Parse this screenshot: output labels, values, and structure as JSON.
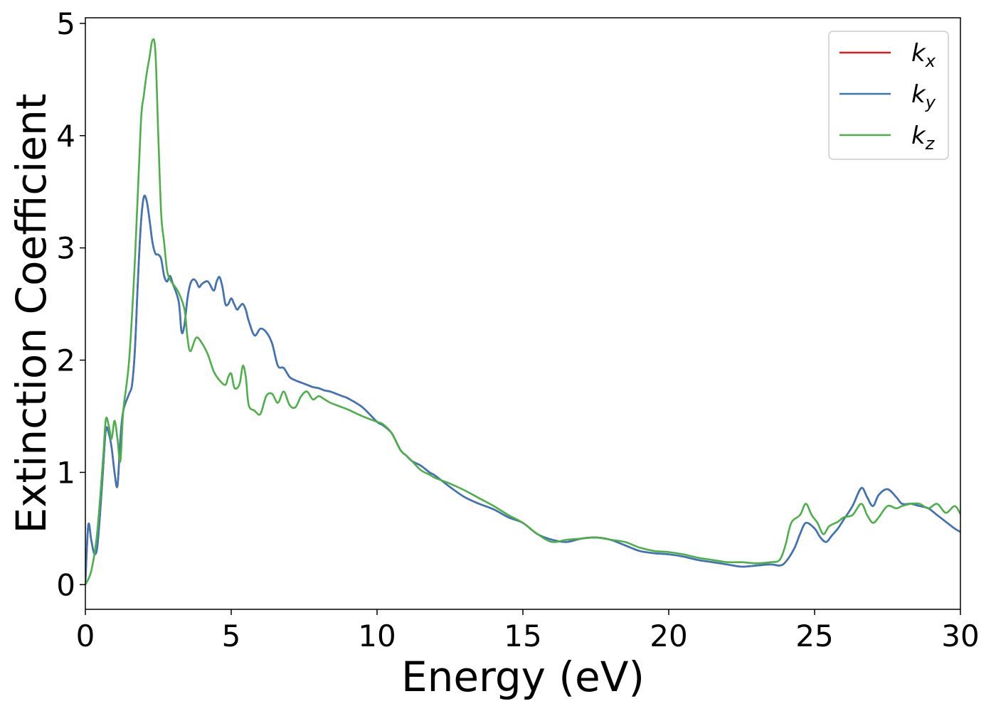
{
  "chart_data": {
    "type": "line",
    "title": "",
    "xlabel": "Energy (eV)",
    "ylabel": "Extinction Coefficient",
    "xlim": [
      0,
      30
    ],
    "ylim": [
      -0.22,
      5.05
    ],
    "xticks": [
      0,
      5,
      10,
      15,
      20,
      25,
      30
    ],
    "yticks": [
      0,
      1,
      2,
      3,
      4,
      5
    ],
    "grid": false,
    "legend_position": "top-right",
    "series": [
      {
        "name": "k",
        "subscript": "x",
        "color": "#e41a1c",
        "x": [
          0,
          0.1,
          0.2,
          0.3,
          0.4,
          0.5,
          0.6,
          0.7,
          0.8,
          0.9,
          1.0,
          1.1,
          1.2,
          1.3,
          1.5,
          1.6,
          1.7,
          1.8,
          1.9,
          2.0,
          2.1,
          2.2,
          2.3,
          2.4,
          2.5,
          2.6,
          2.7,
          2.8,
          2.9,
          3.0,
          3.2,
          3.3,
          3.4,
          3.5,
          3.6,
          3.7,
          3.8,
          3.9,
          4.0,
          4.2,
          4.4,
          4.5,
          4.6,
          4.7,
          4.8,
          4.9,
          5.0,
          5.1,
          5.2,
          5.3,
          5.4,
          5.5,
          5.6,
          5.8,
          6.0,
          6.2,
          6.4,
          6.6,
          6.8,
          7.0,
          7.2,
          7.4,
          7.6,
          7.8,
          8.0,
          8.2,
          8.4,
          8.6,
          8.8,
          9.0,
          9.5,
          10.0,
          10.2,
          10.5,
          10.8,
          11.0,
          11.2,
          11.5,
          11.8,
          12.0,
          12.5,
          13.0,
          13.5,
          14.0,
          14.5,
          15.0,
          15.5,
          16.0,
          16.5,
          17.0,
          17.5,
          18.0,
          18.5,
          19.0,
          19.5,
          20.0,
          20.5,
          21.0,
          21.5,
          22.0,
          22.5,
          23.0,
          23.5,
          23.8,
          24.0,
          24.3,
          24.5,
          24.7,
          25.0,
          25.2,
          25.4,
          25.6,
          25.8,
          26.0,
          26.3,
          26.6,
          26.8,
          27.0,
          27.2,
          27.5,
          27.8,
          28.0,
          28.3,
          28.6,
          28.9,
          29.2,
          29.5,
          29.8,
          30.0
        ],
        "y": [
          0.02,
          0.53,
          0.4,
          0.28,
          0.32,
          0.62,
          1.0,
          1.38,
          1.35,
          1.22,
          1.0,
          0.88,
          1.3,
          1.55,
          1.7,
          1.78,
          2.1,
          2.7,
          3.2,
          3.45,
          3.42,
          3.25,
          3.05,
          2.95,
          2.94,
          2.9,
          2.75,
          2.7,
          2.75,
          2.68,
          2.52,
          2.25,
          2.32,
          2.55,
          2.68,
          2.72,
          2.7,
          2.65,
          2.68,
          2.7,
          2.62,
          2.7,
          2.74,
          2.65,
          2.5,
          2.5,
          2.55,
          2.5,
          2.45,
          2.48,
          2.5,
          2.45,
          2.35,
          2.22,
          2.28,
          2.25,
          2.15,
          1.95,
          1.93,
          1.85,
          1.82,
          1.8,
          1.78,
          1.76,
          1.75,
          1.73,
          1.72,
          1.7,
          1.68,
          1.66,
          1.58,
          1.45,
          1.42,
          1.35,
          1.2,
          1.15,
          1.1,
          1.06,
          1.0,
          0.97,
          0.87,
          0.78,
          0.72,
          0.67,
          0.6,
          0.55,
          0.45,
          0.4,
          0.38,
          0.41,
          0.42,
          0.4,
          0.35,
          0.3,
          0.28,
          0.27,
          0.25,
          0.22,
          0.2,
          0.18,
          0.16,
          0.17,
          0.18,
          0.17,
          0.2,
          0.32,
          0.45,
          0.55,
          0.5,
          0.42,
          0.38,
          0.44,
          0.5,
          0.58,
          0.7,
          0.86,
          0.78,
          0.7,
          0.8,
          0.85,
          0.78,
          0.72,
          0.72,
          0.7,
          0.68,
          0.62,
          0.56,
          0.5,
          0.47
        ]
      },
      {
        "name": "k",
        "subscript": "y",
        "color": "#3b77b8",
        "x": [
          0,
          0.1,
          0.2,
          0.3,
          0.4,
          0.5,
          0.6,
          0.7,
          0.8,
          0.9,
          1.0,
          1.1,
          1.2,
          1.3,
          1.5,
          1.6,
          1.7,
          1.8,
          1.9,
          2.0,
          2.1,
          2.2,
          2.3,
          2.4,
          2.5,
          2.6,
          2.7,
          2.8,
          2.9,
          3.0,
          3.2,
          3.3,
          3.4,
          3.5,
          3.6,
          3.7,
          3.8,
          3.9,
          4.0,
          4.2,
          4.4,
          4.5,
          4.6,
          4.7,
          4.8,
          4.9,
          5.0,
          5.1,
          5.2,
          5.3,
          5.4,
          5.5,
          5.6,
          5.8,
          6.0,
          6.2,
          6.4,
          6.6,
          6.8,
          7.0,
          7.2,
          7.4,
          7.6,
          7.8,
          8.0,
          8.2,
          8.4,
          8.6,
          8.8,
          9.0,
          9.5,
          10.0,
          10.2,
          10.5,
          10.8,
          11.0,
          11.2,
          11.5,
          11.8,
          12.0,
          12.5,
          13.0,
          13.5,
          14.0,
          14.5,
          15.0,
          15.5,
          16.0,
          16.5,
          17.0,
          17.5,
          18.0,
          18.5,
          19.0,
          19.5,
          20.0,
          20.5,
          21.0,
          21.5,
          22.0,
          22.5,
          23.0,
          23.5,
          23.8,
          24.0,
          24.3,
          24.5,
          24.7,
          25.0,
          25.2,
          25.4,
          25.6,
          25.8,
          26.0,
          26.3,
          26.6,
          26.8,
          27.0,
          27.2,
          27.5,
          27.8,
          28.0,
          28.3,
          28.6,
          28.9,
          29.2,
          29.5,
          29.8,
          30.0
        ],
        "y": [
          0.02,
          0.53,
          0.4,
          0.28,
          0.32,
          0.62,
          1.0,
          1.38,
          1.35,
          1.22,
          1.0,
          0.88,
          1.3,
          1.55,
          1.7,
          1.78,
          2.1,
          2.7,
          3.2,
          3.45,
          3.42,
          3.25,
          3.05,
          2.95,
          2.94,
          2.9,
          2.75,
          2.7,
          2.75,
          2.68,
          2.52,
          2.25,
          2.32,
          2.55,
          2.68,
          2.72,
          2.7,
          2.65,
          2.68,
          2.7,
          2.62,
          2.7,
          2.74,
          2.65,
          2.5,
          2.5,
          2.55,
          2.5,
          2.45,
          2.48,
          2.5,
          2.45,
          2.35,
          2.22,
          2.28,
          2.25,
          2.15,
          1.95,
          1.93,
          1.85,
          1.82,
          1.8,
          1.78,
          1.76,
          1.75,
          1.73,
          1.72,
          1.7,
          1.68,
          1.66,
          1.58,
          1.45,
          1.42,
          1.35,
          1.2,
          1.15,
          1.1,
          1.06,
          1.0,
          0.97,
          0.87,
          0.78,
          0.72,
          0.67,
          0.6,
          0.55,
          0.45,
          0.4,
          0.38,
          0.41,
          0.42,
          0.4,
          0.35,
          0.3,
          0.28,
          0.27,
          0.25,
          0.22,
          0.2,
          0.18,
          0.16,
          0.17,
          0.18,
          0.17,
          0.2,
          0.32,
          0.45,
          0.55,
          0.5,
          0.42,
          0.38,
          0.44,
          0.5,
          0.58,
          0.7,
          0.86,
          0.78,
          0.7,
          0.8,
          0.85,
          0.78,
          0.72,
          0.72,
          0.7,
          0.68,
          0.62,
          0.56,
          0.5,
          0.47
        ]
      },
      {
        "name": "k",
        "subscript": "z",
        "color": "#4daf4a",
        "x": [
          0,
          0.2,
          0.4,
          0.6,
          0.7,
          0.8,
          0.9,
          1.0,
          1.1,
          1.2,
          1.3,
          1.5,
          1.7,
          1.9,
          2.0,
          2.1,
          2.2,
          2.3,
          2.4,
          2.5,
          2.6,
          2.7,
          2.8,
          2.9,
          3.0,
          3.2,
          3.4,
          3.5,
          3.6,
          3.8,
          4.0,
          4.2,
          4.4,
          4.6,
          4.8,
          4.9,
          5.0,
          5.1,
          5.2,
          5.3,
          5.4,
          5.5,
          5.6,
          5.8,
          6.0,
          6.2,
          6.4,
          6.6,
          6.8,
          7.0,
          7.2,
          7.4,
          7.6,
          7.8,
          8.0,
          8.2,
          8.4,
          8.6,
          8.8,
          9.0,
          9.5,
          10.0,
          10.2,
          10.5,
          10.8,
          11.0,
          11.2,
          11.5,
          11.8,
          12.0,
          12.5,
          13.0,
          13.5,
          14.0,
          14.5,
          15.0,
          15.5,
          16.0,
          16.5,
          17.0,
          17.5,
          18.0,
          18.5,
          19.0,
          19.5,
          20.0,
          20.5,
          21.0,
          21.5,
          22.0,
          22.5,
          23.0,
          23.5,
          23.8,
          24.0,
          24.2,
          24.5,
          24.7,
          24.9,
          25.1,
          25.3,
          25.5,
          25.8,
          26.0,
          26.3,
          26.6,
          26.8,
          27.0,
          27.2,
          27.5,
          27.8,
          28.0,
          28.3,
          28.6,
          28.9,
          29.2,
          29.5,
          29.8,
          30.0
        ],
        "y": [
          0.0,
          0.12,
          0.45,
          1.1,
          1.47,
          1.42,
          1.3,
          1.46,
          1.3,
          1.1,
          1.55,
          2.0,
          2.9,
          4.1,
          4.35,
          4.55,
          4.7,
          4.85,
          4.75,
          4.0,
          3.3,
          3.05,
          2.8,
          2.72,
          2.68,
          2.6,
          2.45,
          2.2,
          2.08,
          2.2,
          2.15,
          2.05,
          1.9,
          1.82,
          1.78,
          1.85,
          1.88,
          1.76,
          1.75,
          1.8,
          1.95,
          1.85,
          1.6,
          1.55,
          1.52,
          1.68,
          1.7,
          1.62,
          1.72,
          1.6,
          1.58,
          1.68,
          1.72,
          1.65,
          1.68,
          1.65,
          1.62,
          1.6,
          1.58,
          1.56,
          1.5,
          1.45,
          1.43,
          1.35,
          1.2,
          1.15,
          1.1,
          1.02,
          0.98,
          0.95,
          0.9,
          0.84,
          0.77,
          0.7,
          0.62,
          0.55,
          0.45,
          0.38,
          0.4,
          0.41,
          0.42,
          0.4,
          0.38,
          0.33,
          0.3,
          0.29,
          0.27,
          0.24,
          0.22,
          0.2,
          0.2,
          0.19,
          0.2,
          0.22,
          0.35,
          0.55,
          0.62,
          0.72,
          0.62,
          0.55,
          0.45,
          0.52,
          0.56,
          0.6,
          0.62,
          0.72,
          0.62,
          0.55,
          0.6,
          0.7,
          0.68,
          0.7,
          0.72,
          0.72,
          0.68,
          0.72,
          0.64,
          0.7,
          0.63
        ]
      }
    ]
  }
}
